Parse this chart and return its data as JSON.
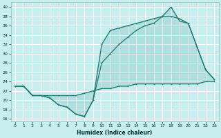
{
  "xlabel": "Humidex (Indice chaleur)",
  "bg_color": "#c8eef0",
  "grid_color": "#ffffff",
  "line_color": "#1a7a6e",
  "xlim": [
    -0.5,
    23.5
  ],
  "ylim": [
    15.5,
    41
  ],
  "yticks": [
    16,
    18,
    20,
    22,
    24,
    26,
    28,
    30,
    32,
    34,
    36,
    38,
    40
  ],
  "xticks": [
    0,
    1,
    2,
    3,
    4,
    5,
    6,
    7,
    8,
    9,
    10,
    11,
    12,
    13,
    14,
    15,
    16,
    17,
    18,
    19,
    20,
    21,
    22,
    23
  ],
  "line1_x": [
    0,
    1,
    2,
    3,
    4,
    5,
    6,
    7,
    8,
    9,
    10,
    11,
    12,
    13,
    14,
    15,
    16,
    17,
    18,
    19,
    20,
    21,
    22,
    23
  ],
  "line1_y": [
    23.0,
    23.0,
    21.0,
    21.0,
    21.0,
    21.0,
    21.0,
    21.0,
    21.5,
    22.0,
    22.5,
    22.5,
    23.0,
    23.0,
    23.5,
    23.5,
    23.5,
    23.5,
    23.5,
    23.5,
    23.5,
    23.5,
    24.0,
    24.0
  ],
  "line2_x": [
    0,
    1,
    2,
    3,
    4,
    5,
    6,
    7,
    8,
    9,
    10,
    11,
    12,
    13,
    14,
    15,
    16,
    17,
    18,
    19,
    20,
    21,
    22,
    23
  ],
  "line2_y": [
    23.0,
    23.0,
    21.0,
    21.0,
    20.5,
    19.0,
    18.5,
    17.0,
    16.5,
    20.0,
    32.0,
    35.0,
    35.5,
    36.0,
    36.5,
    37.0,
    37.5,
    38.0,
    40.0,
    37.0,
    36.5,
    31.5,
    26.5,
    24.5
  ],
  "line3_x": [
    0,
    1,
    2,
    3,
    4,
    5,
    6,
    7,
    8,
    9,
    10,
    11,
    12,
    13,
    14,
    15,
    16,
    17,
    18,
    19,
    20,
    21,
    22,
    23
  ],
  "line3_y": [
    23.0,
    23.0,
    21.0,
    21.0,
    20.5,
    19.0,
    18.5,
    17.0,
    16.5,
    20.0,
    28.0,
    30.0,
    32.0,
    33.5,
    35.0,
    36.0,
    36.5,
    38.0,
    38.0,
    37.5,
    36.5,
    31.5,
    26.5,
    24.5
  ]
}
